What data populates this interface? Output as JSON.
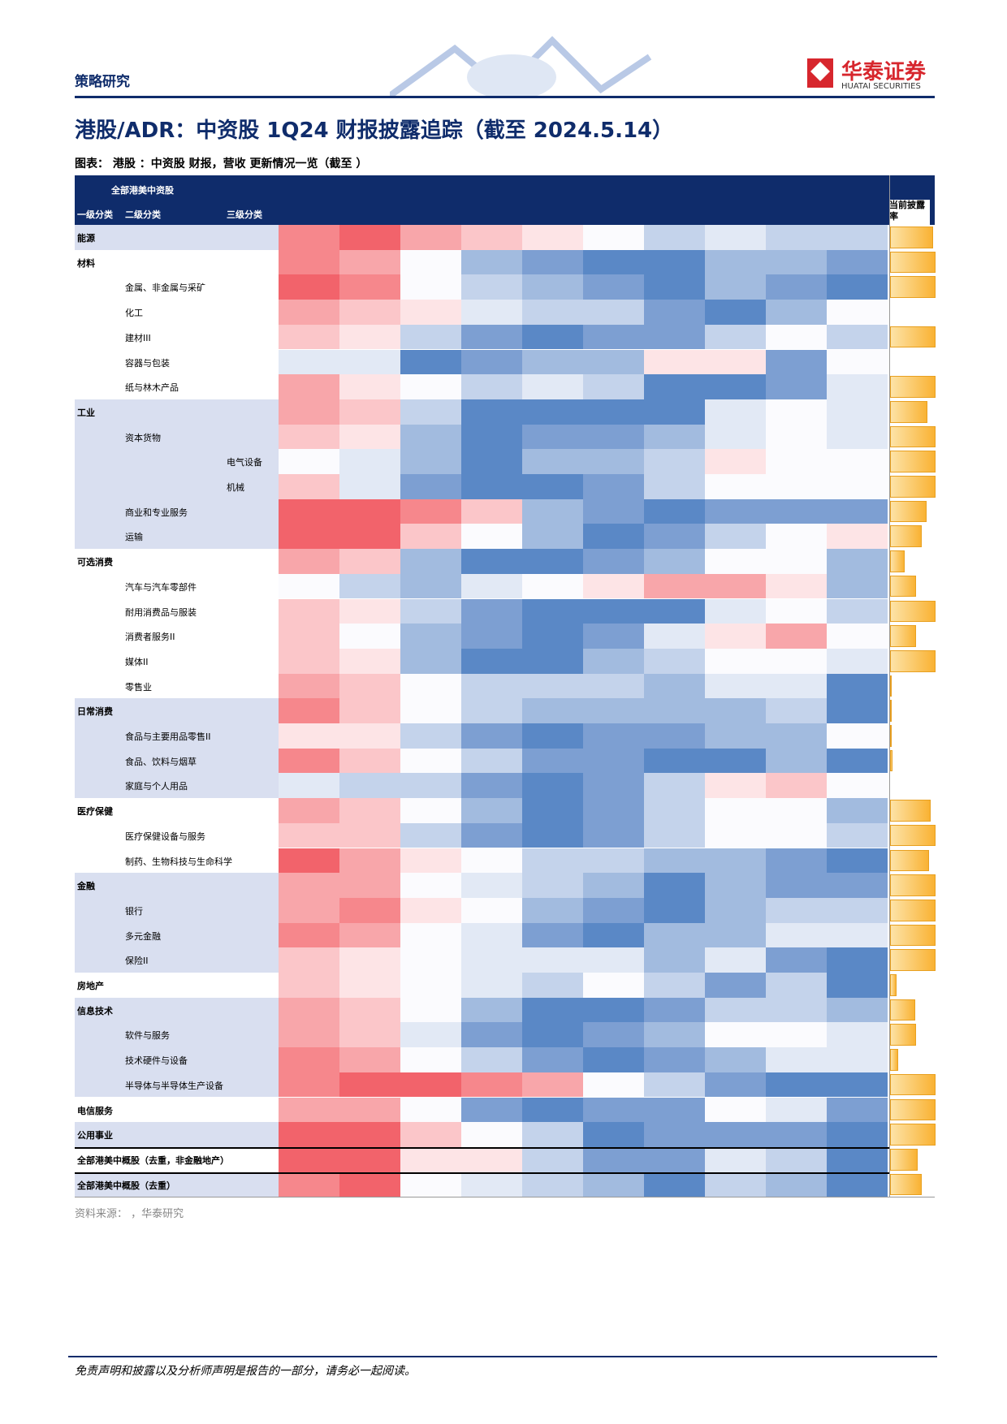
{
  "header": {
    "section": "策略研究",
    "brand": "华泰证券",
    "brand_en": "HUATAI SECURITIES"
  },
  "title": "港股/ADR：中资股 1Q24 财报披露追踪（截至 2024.5.14）",
  "figure": {
    "caption": "图表： 港股 ：中资股 财报，营收 更新情况一览（截至 ）",
    "head": {
      "universe": "全部港美中资股",
      "level1": "一级分类",
      "level2": "二级分类",
      "level3": "三级分类",
      "rate": "当前披露率"
    },
    "rows": [
      {
        "label": "能源",
        "level": 0,
        "shade": true,
        "colors": [
          "#f6878c",
          "#f2636b",
          "#f8a6aa",
          "#fbc6c9",
          "#fde4e6",
          "#fbfbfe",
          "#c4d3eb",
          "#e2e9f5",
          "#c4d3eb",
          "#c4d3eb"
        ],
        "rate": 95
      },
      {
        "label": "材料",
        "level": 0,
        "shade": false,
        "colors": [
          "#f6878c",
          "#f8a6aa",
          "#fbfbfe",
          "#a2bbdf",
          "#7d9fd2",
          "#5a88c6",
          "#5a88c6",
          "#a2bbdf",
          "#a2bbdf",
          "#7d9fd2"
        ],
        "rate": 100
      },
      {
        "label": "金属、非金属与采矿",
        "level": 1,
        "shade": false,
        "colors": [
          "#f2636b",
          "#f6878c",
          "#fbfbfe",
          "#c4d3eb",
          "#a2bbdf",
          "#7d9fd2",
          "#5a88c6",
          "#a2bbdf",
          "#7d9fd2",
          "#5a88c6"
        ],
        "rate": 100
      },
      {
        "label": "化工",
        "level": 1,
        "shade": false,
        "colors": [
          "#f8a6aa",
          "#fbc6c9",
          "#fde4e6",
          "#e2e9f5",
          "#c4d3eb",
          "#c4d3eb",
          "#7d9fd2",
          "#5a88c6",
          "#a2bbdf",
          "#fbfbfe"
        ],
        "rate": 0
      },
      {
        "label": "建材III",
        "level": 1,
        "shade": false,
        "colors": [
          "#fbc6c9",
          "#fde4e6",
          "#c4d3eb",
          "#7d9fd2",
          "#5a88c6",
          "#7d9fd2",
          "#7d9fd2",
          "#c4d3eb",
          "#fbfbfe",
          "#c4d3eb"
        ],
        "rate": 100
      },
      {
        "label": "容器与包装",
        "level": 1,
        "shade": false,
        "colors": [
          "#e2e9f5",
          "#e2e9f5",
          "#5a88c6",
          "#7d9fd2",
          "#a2bbdf",
          "#a2bbdf",
          "#fde4e6",
          "#fde4e6",
          "#7d9fd2",
          "#fbfbfe"
        ],
        "rate": 0
      },
      {
        "label": "纸与林木产品",
        "level": 1,
        "shade": false,
        "colors": [
          "#f8a6aa",
          "#fde4e6",
          "#fbfbfe",
          "#c4d3eb",
          "#e2e9f5",
          "#c4d3eb",
          "#5a88c6",
          "#5a88c6",
          "#7d9fd2",
          "#e2e9f5"
        ],
        "rate": 100
      },
      {
        "label": "工业",
        "level": 0,
        "shade": true,
        "colors": [
          "#f8a6aa",
          "#fbc6c9",
          "#c4d3eb",
          "#5a88c6",
          "#5a88c6",
          "#5a88c6",
          "#5a88c6",
          "#e2e9f5",
          "#fbfbfe",
          "#e2e9f5"
        ],
        "rate": 82
      },
      {
        "label": "资本货物",
        "level": 1,
        "shade": true,
        "colors": [
          "#fbc6c9",
          "#fde4e6",
          "#a2bbdf",
          "#5a88c6",
          "#7d9fd2",
          "#7d9fd2",
          "#a2bbdf",
          "#e2e9f5",
          "#fbfbfe",
          "#e2e9f5"
        ],
        "rate": 100
      },
      {
        "label": "电气设备",
        "level": 2,
        "shade": true,
        "colors": [
          "#fbfbfe",
          "#e2e9f5",
          "#a2bbdf",
          "#5a88c6",
          "#a2bbdf",
          "#a2bbdf",
          "#c4d3eb",
          "#fde4e6",
          "#fbfbfe",
          "#fbfbfe"
        ],
        "rate": 100
      },
      {
        "label": "机械",
        "level": 2,
        "shade": true,
        "colors": [
          "#fbc6c9",
          "#e2e9f5",
          "#7d9fd2",
          "#5a88c6",
          "#5a88c6",
          "#7d9fd2",
          "#c4d3eb",
          "#fbfbfe",
          "#fbfbfe",
          "#fbfbfe"
        ],
        "rate": 100
      },
      {
        "label": "商业和专业服务",
        "level": 1,
        "shade": true,
        "colors": [
          "#f2636b",
          "#f2636b",
          "#f6878c",
          "#fbc6c9",
          "#a2bbdf",
          "#7d9fd2",
          "#5a88c6",
          "#7d9fd2",
          "#7d9fd2",
          "#7d9fd2"
        ],
        "rate": 80
      },
      {
        "label": "运输",
        "level": 1,
        "shade": true,
        "colors": [
          "#f2636b",
          "#f2636b",
          "#fbc6c9",
          "#fbfbfe",
          "#a2bbdf",
          "#5a88c6",
          "#7d9fd2",
          "#c4d3eb",
          "#fbfbfe",
          "#fde4e6"
        ],
        "rate": 70
      },
      {
        "label": "可选消费",
        "level": 0,
        "shade": false,
        "colors": [
          "#f8a6aa",
          "#fbc6c9",
          "#a2bbdf",
          "#5a88c6",
          "#5a88c6",
          "#7d9fd2",
          "#a2bbdf",
          "#fbfbfe",
          "#fbfbfe",
          "#a2bbdf"
        ],
        "rate": 33
      },
      {
        "label": "汽车与汽车零部件",
        "level": 1,
        "shade": false,
        "colors": [
          "#fbfbfe",
          "#c4d3eb",
          "#a2bbdf",
          "#e2e9f5",
          "#fbfbfe",
          "#fde4e6",
          "#f8a6aa",
          "#f8a6aa",
          "#fde4e6",
          "#a2bbdf"
        ],
        "rate": 58
      },
      {
        "label": "耐用消费品与服装",
        "level": 1,
        "shade": false,
        "colors": [
          "#fbc6c9",
          "#fde4e6",
          "#c4d3eb",
          "#7d9fd2",
          "#5a88c6",
          "#5a88c6",
          "#5a88c6",
          "#e2e9f5",
          "#fbfbfe",
          "#c4d3eb"
        ],
        "rate": 100
      },
      {
        "label": "消费者服务II",
        "level": 1,
        "shade": false,
        "colors": [
          "#fbc6c9",
          "#fbfbfe",
          "#a2bbdf",
          "#7d9fd2",
          "#5a88c6",
          "#7d9fd2",
          "#e2e9f5",
          "#fde4e6",
          "#f8a6aa",
          "#fbfbfe"
        ],
        "rate": 58
      },
      {
        "label": "媒体II",
        "level": 1,
        "shade": false,
        "colors": [
          "#fbc6c9",
          "#fde4e6",
          "#a2bbdf",
          "#5a88c6",
          "#5a88c6",
          "#a2bbdf",
          "#c4d3eb",
          "#fbfbfe",
          "#fbfbfe",
          "#e2e9f5"
        ],
        "rate": 100
      },
      {
        "label": "零售业",
        "level": 1,
        "shade": false,
        "colors": [
          "#f8a6aa",
          "#fbc6c9",
          "#fbfbfe",
          "#c4d3eb",
          "#c4d3eb",
          "#c4d3eb",
          "#a2bbdf",
          "#e2e9f5",
          "#e2e9f5",
          "#5a88c6"
        ],
        "rate": 2
      },
      {
        "label": "日常消费",
        "level": 0,
        "shade": true,
        "colors": [
          "#f6878c",
          "#fbc6c9",
          "#fbfbfe",
          "#c4d3eb",
          "#a2bbdf",
          "#a2bbdf",
          "#a2bbdf",
          "#a2bbdf",
          "#c4d3eb",
          "#5a88c6"
        ],
        "rate": 2
      },
      {
        "label": "食品与主要用品零售II",
        "level": 1,
        "shade": true,
        "colors": [
          "#fde4e6",
          "#fde4e6",
          "#c4d3eb",
          "#7d9fd2",
          "#5a88c6",
          "#7d9fd2",
          "#7d9fd2",
          "#a2bbdf",
          "#a2bbdf",
          "#fbfbfe"
        ],
        "rate": 2
      },
      {
        "label": "食品、饮料与烟草",
        "level": 1,
        "shade": true,
        "colors": [
          "#f6878c",
          "#fbc6c9",
          "#fbfbfe",
          "#c4d3eb",
          "#7d9fd2",
          "#7d9fd2",
          "#5a88c6",
          "#5a88c6",
          "#a2bbdf",
          "#5a88c6"
        ],
        "rate": 5
      },
      {
        "label": "家庭与个人用品",
        "level": 1,
        "shade": true,
        "colors": [
          "#e2e9f5",
          "#c4d3eb",
          "#c4d3eb",
          "#7d9fd2",
          "#5a88c6",
          "#7d9fd2",
          "#c4d3eb",
          "#fde4e6",
          "#fbc6c9",
          "#fbfbfe"
        ],
        "rate": 0
      },
      {
        "label": "医疗保健",
        "level": 0,
        "shade": false,
        "colors": [
          "#f8a6aa",
          "#fbc6c9",
          "#fbfbfe",
          "#a2bbdf",
          "#5a88c6",
          "#7d9fd2",
          "#c4d3eb",
          "#fbfbfe",
          "#fbfbfe",
          "#a2bbdf"
        ],
        "rate": 90
      },
      {
        "label": "医疗保健设备与服务",
        "level": 1,
        "shade": false,
        "colors": [
          "#fbc6c9",
          "#fbc6c9",
          "#c4d3eb",
          "#7d9fd2",
          "#5a88c6",
          "#7d9fd2",
          "#c4d3eb",
          "#fbfbfe",
          "#fbfbfe",
          "#c4d3eb"
        ],
        "rate": 100
      },
      {
        "label": "制药、生物科技与生命科学",
        "level": 1,
        "shade": false,
        "colors": [
          "#f2636b",
          "#f8a6aa",
          "#fde4e6",
          "#fbfbfe",
          "#c4d3eb",
          "#c4d3eb",
          "#a2bbdf",
          "#a2bbdf",
          "#7d9fd2",
          "#5a88c6"
        ],
        "rate": 85
      },
      {
        "label": "金融",
        "level": 0,
        "shade": true,
        "colors": [
          "#f8a6aa",
          "#f8a6aa",
          "#fbfbfe",
          "#e2e9f5",
          "#c4d3eb",
          "#a2bbdf",
          "#5a88c6",
          "#a2bbdf",
          "#7d9fd2",
          "#7d9fd2"
        ],
        "rate": 100
      },
      {
        "label": "银行",
        "level": 1,
        "shade": true,
        "colors": [
          "#f8a6aa",
          "#f6878c",
          "#fde4e6",
          "#fbfbfe",
          "#a2bbdf",
          "#7d9fd2",
          "#5a88c6",
          "#a2bbdf",
          "#c4d3eb",
          "#c4d3eb"
        ],
        "rate": 100
      },
      {
        "label": "多元金融",
        "level": 1,
        "shade": true,
        "colors": [
          "#f6878c",
          "#f8a6aa",
          "#fbfbfe",
          "#e2e9f5",
          "#7d9fd2",
          "#5a88c6",
          "#a2bbdf",
          "#a2bbdf",
          "#e2e9f5",
          "#e2e9f5"
        ],
        "rate": 100
      },
      {
        "label": "保险II",
        "level": 1,
        "shade": true,
        "colors": [
          "#fbc6c9",
          "#fde4e6",
          "#fbfbfe",
          "#e2e9f5",
          "#e2e9f5",
          "#e2e9f5",
          "#a2bbdf",
          "#e2e9f5",
          "#7d9fd2",
          "#5a88c6"
        ],
        "rate": 100
      },
      {
        "label": "房地产",
        "level": 0,
        "shade": false,
        "colors": [
          "#fbc6c9",
          "#fde4e6",
          "#fbfbfe",
          "#e2e9f5",
          "#c4d3eb",
          "#fbfbfe",
          "#c4d3eb",
          "#7d9fd2",
          "#c4d3eb",
          "#5a88c6"
        ],
        "rate": 15
      },
      {
        "label": "信息技术",
        "level": 0,
        "shade": true,
        "colors": [
          "#f8a6aa",
          "#fbc6c9",
          "#fbfbfe",
          "#a2bbdf",
          "#5a88c6",
          "#5a88c6",
          "#7d9fd2",
          "#c4d3eb",
          "#c4d3eb",
          "#a2bbdf"
        ],
        "rate": 55
      },
      {
        "label": "软件与服务",
        "level": 1,
        "shade": true,
        "colors": [
          "#f8a6aa",
          "#fbc6c9",
          "#e2e9f5",
          "#7d9fd2",
          "#5a88c6",
          "#7d9fd2",
          "#a2bbdf",
          "#fbfbfe",
          "#fbfbfe",
          "#e2e9f5"
        ],
        "rate": 58
      },
      {
        "label": "技术硬件与设备",
        "level": 1,
        "shade": true,
        "colors": [
          "#f6878c",
          "#f8a6aa",
          "#fbfbfe",
          "#c4d3eb",
          "#7d9fd2",
          "#5a88c6",
          "#7d9fd2",
          "#a2bbdf",
          "#e2e9f5",
          "#e2e9f5"
        ],
        "rate": 17
      },
      {
        "label": "半导体与半导体生产设备",
        "level": 1,
        "shade": true,
        "colors": [
          "#f6878c",
          "#f2636b",
          "#f2636b",
          "#f6878c",
          "#f8a6aa",
          "#fbfbfe",
          "#c4d3eb",
          "#7d9fd2",
          "#5a88c6",
          "#5a88c6"
        ],
        "rate": 100
      },
      {
        "label": "电信服务",
        "level": 0,
        "shade": false,
        "colors": [
          "#f8a6aa",
          "#f8a6aa",
          "#fbfbfe",
          "#7d9fd2",
          "#5a88c6",
          "#7d9fd2",
          "#7d9fd2",
          "#fbfbfe",
          "#e2e9f5",
          "#7d9fd2"
        ],
        "rate": 100
      },
      {
        "label": "公用事业",
        "level": 0,
        "shade": true,
        "colors": [
          "#f2636b",
          "#f2636b",
          "#fbc6c9",
          "#fbfbfe",
          "#c4d3eb",
          "#5a88c6",
          "#7d9fd2",
          "#7d9fd2",
          "#7d9fd2",
          "#5a88c6"
        ],
        "rate": 100
      },
      {
        "label": "全部港美中概股（去重，非金融地产）",
        "level": 0,
        "shade": false,
        "colors": [
          "#f2636b",
          "#f2636b",
          "#fde4e6",
          "#fde4e6",
          "#c4d3eb",
          "#7d9fd2",
          "#7d9fd2",
          "#e2e9f5",
          "#c4d3eb",
          "#5a88c6"
        ],
        "rate": 60
      },
      {
        "label": "全部港美中概股（去重）",
        "level": 0,
        "shade": true,
        "colors": [
          "#f6878c",
          "#f2636b",
          "#fbfbfe",
          "#e2e9f5",
          "#c4d3eb",
          "#a2bbdf",
          "#5a88c6",
          "#c4d3eb",
          "#a2bbdf",
          "#5a88c6"
        ],
        "rate": 70
      }
    ],
    "source": "资料来源： ，华泰研究"
  },
  "footer": "免责声明和披露以及分析师声明是报告的一部分，请务必一起阅读。"
}
